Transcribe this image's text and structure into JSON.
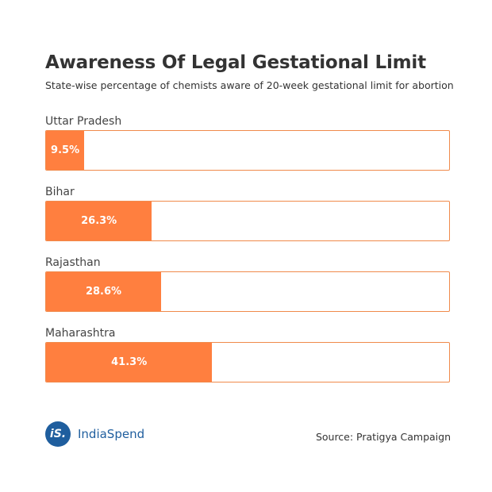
{
  "title": "Awareness Of Legal Gestational Limit",
  "subtitle": "State-wise percentage of chemists aware of 20-week gestational limit for abortion",
  "source": "Source: Pratigya Campaign",
  "brand": {
    "mark": "iS.",
    "name": "IndiaSpend",
    "color": "#1f5e9e"
  },
  "colors": {
    "bar": "#ff7f3f",
    "border": "#f08a4b"
  },
  "chart_data": {
    "type": "bar",
    "orientation": "horizontal",
    "unit": "%",
    "xlim": [
      0,
      100
    ],
    "categories": [
      "Uttar Pradesh",
      "Bihar",
      "Rajasthan",
      "Maharashtra"
    ],
    "values": [
      9.5,
      26.3,
      28.6,
      41.3
    ],
    "value_labels": [
      "9.5%",
      "26.3%",
      "28.6%",
      "41.3%"
    ],
    "title": "Awareness Of Legal Gestational Limit",
    "subtitle": "State-wise percentage of chemists aware of 20-week gestational limit for abortion",
    "xlabel": "",
    "ylabel": "",
    "grid": false,
    "legend": "none"
  }
}
